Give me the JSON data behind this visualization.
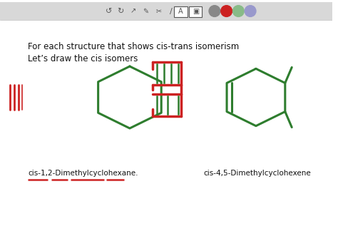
{
  "background_color": "#ffffff",
  "toolbar_bg": "#d8d8d8",
  "green": "#2e7d2e",
  "red": "#cc2222",
  "text1": "For each structure that shows cis-trans isomerism",
  "text2": "Let’s draw the cis isomers",
  "label1": "cis-1,2-Dimethylcyclohexane.",
  "label2": "cis-4,5-Dimethylcyclohexene",
  "font_size_text": 8.5,
  "font_size_label": 7.5
}
